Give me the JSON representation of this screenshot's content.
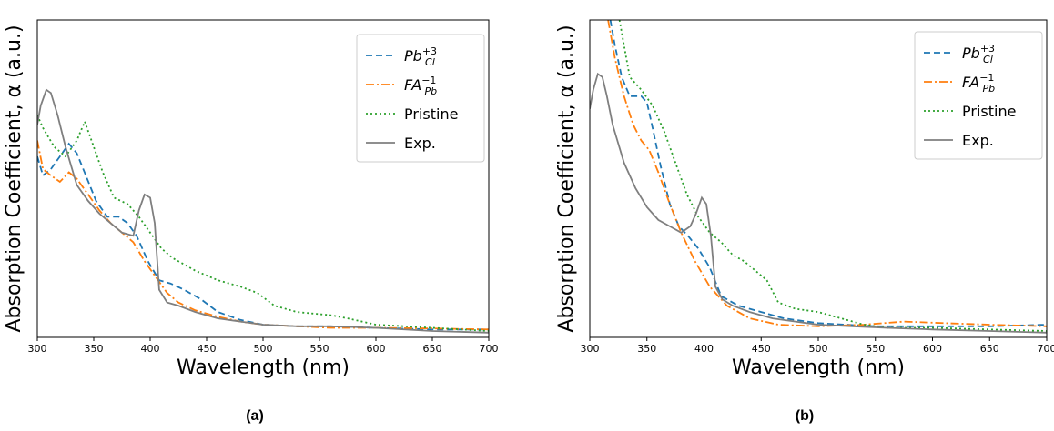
{
  "chart_data": [
    {
      "type": "line",
      "panel_label": "(a)",
      "xlabel": "Wavelength (nm)",
      "ylabel": "Absorption Coefficient, α (a.u.)",
      "xlim": [
        300,
        700
      ],
      "ylim": [
        0,
        1
      ],
      "xticks": [
        "300",
        "350",
        "400",
        "450",
        "500",
        "550",
        "600",
        "650",
        "700"
      ],
      "yticks_shown": false,
      "legend_position": "top-right",
      "series": [
        {
          "name": "Pb",
          "name_sub": "Cl",
          "name_sup": "+3",
          "color": "#1f77b4",
          "style": "dashed",
          "x": [
            300,
            305,
            312,
            320,
            328,
            335,
            343,
            352,
            362,
            372,
            380,
            388,
            398,
            408,
            418,
            430,
            445,
            460,
            480,
            500,
            530,
            560,
            600,
            650,
            700
          ],
          "y": [
            0.57,
            0.51,
            0.53,
            0.57,
            0.61,
            0.58,
            0.51,
            0.43,
            0.38,
            0.38,
            0.36,
            0.32,
            0.24,
            0.18,
            0.17,
            0.15,
            0.12,
            0.08,
            0.055,
            0.04,
            0.035,
            0.035,
            0.03,
            0.025,
            0.025
          ]
        },
        {
          "name": "FA",
          "name_sub": "Pb",
          "name_sup": "−1",
          "color": "#ff7f0e",
          "style": "dashdot",
          "x": [
            300,
            305,
            312,
            320,
            328,
            335,
            345,
            355,
            365,
            375,
            385,
            395,
            405,
            415,
            425,
            440,
            460,
            480,
            500,
            530,
            560,
            600,
            650,
            700
          ],
          "y": [
            0.62,
            0.53,
            0.51,
            0.49,
            0.52,
            0.5,
            0.45,
            0.4,
            0.36,
            0.33,
            0.3,
            0.24,
            0.19,
            0.14,
            0.11,
            0.085,
            0.065,
            0.05,
            0.04,
            0.035,
            0.03,
            0.03,
            0.028,
            0.025
          ]
        },
        {
          "name": "Pristine",
          "color": "#2ca02c",
          "style": "dotted",
          "x": [
            300,
            305,
            315,
            325,
            335,
            342,
            350,
            358,
            368,
            380,
            390,
            400,
            410,
            420,
            440,
            460,
            480,
            495,
            510,
            530,
            560,
            575,
            600,
            650,
            700
          ],
          "y": [
            0.7,
            0.66,
            0.6,
            0.57,
            0.62,
            0.68,
            0.6,
            0.52,
            0.44,
            0.42,
            0.38,
            0.33,
            0.28,
            0.25,
            0.21,
            0.18,
            0.16,
            0.14,
            0.1,
            0.08,
            0.07,
            0.06,
            0.04,
            0.03,
            0.02
          ]
        },
        {
          "name": "Exp.",
          "color": "#7f7f7f",
          "style": "solid",
          "x": [
            300,
            303,
            308,
            312,
            318,
            325,
            335,
            345,
            355,
            365,
            375,
            385,
            390,
            395,
            400,
            404,
            408,
            415,
            425,
            440,
            460,
            480,
            500,
            530,
            560,
            600,
            650,
            700
          ],
          "y": [
            0.67,
            0.73,
            0.78,
            0.77,
            0.7,
            0.6,
            0.48,
            0.43,
            0.39,
            0.36,
            0.33,
            0.32,
            0.4,
            0.45,
            0.44,
            0.36,
            0.15,
            0.11,
            0.1,
            0.08,
            0.06,
            0.05,
            0.04,
            0.035,
            0.035,
            0.03,
            0.02,
            0.015
          ]
        }
      ]
    },
    {
      "type": "line",
      "panel_label": "(b)",
      "xlabel": "Wavelength (nm)",
      "ylabel": "Absorption Coefficient, α (a.u.)",
      "xlim": [
        300,
        700
      ],
      "ylim": [
        0,
        1
      ],
      "xticks": [
        "300",
        "350",
        "400",
        "450",
        "500",
        "550",
        "600",
        "650",
        "700"
      ],
      "yticks_shown": false,
      "legend_position": "top-right",
      "series": [
        {
          "name": "Pb",
          "name_sub": "Cl",
          "name_sup": "+3",
          "color": "#1f77b4",
          "style": "dashed",
          "x": [
            318,
            322,
            328,
            335,
            345,
            350,
            355,
            362,
            370,
            378,
            386,
            395,
            405,
            415,
            430,
            450,
            470,
            500,
            550,
            600,
            650,
            700
          ],
          "y": [
            1.0,
            0.92,
            0.82,
            0.76,
            0.76,
            0.74,
            0.66,
            0.54,
            0.42,
            0.35,
            0.32,
            0.28,
            0.22,
            0.13,
            0.1,
            0.08,
            0.06,
            0.045,
            0.035,
            0.035,
            0.035,
            0.04
          ]
        },
        {
          "name": "FA",
          "name_sub": "Pb",
          "name_sup": "−1",
          "color": "#ff7f0e",
          "style": "dashdot",
          "x": [
            316,
            322,
            330,
            338,
            345,
            352,
            360,
            370,
            380,
            392,
            405,
            420,
            440,
            465,
            500,
            540,
            575,
            610,
            650,
            700
          ],
          "y": [
            1.0,
            0.88,
            0.76,
            0.67,
            0.62,
            0.59,
            0.52,
            0.42,
            0.33,
            0.24,
            0.16,
            0.1,
            0.06,
            0.04,
            0.035,
            0.04,
            0.05,
            0.045,
            0.04,
            0.035
          ]
        },
        {
          "name": "Pristine",
          "color": "#2ca02c",
          "style": "dotted",
          "x": [
            326,
            330,
            335,
            345,
            355,
            365,
            375,
            385,
            395,
            405,
            415,
            425,
            435,
            445,
            455,
            465,
            480,
            500,
            520,
            540,
            560,
            600,
            650,
            700
          ],
          "y": [
            1.0,
            0.92,
            0.82,
            0.78,
            0.73,
            0.65,
            0.55,
            0.45,
            0.38,
            0.33,
            0.3,
            0.26,
            0.24,
            0.21,
            0.18,
            0.11,
            0.09,
            0.08,
            0.06,
            0.04,
            0.03,
            0.03,
            0.025,
            0.02
          ]
        },
        {
          "name": "Exp.",
          "color": "#7f7f7f",
          "style": "solid",
          "x": [
            300,
            303,
            307,
            311,
            315,
            320,
            330,
            340,
            350,
            360,
            370,
            380,
            388,
            393,
            398,
            402,
            406,
            410,
            416,
            425,
            440,
            460,
            480,
            500,
            530,
            560,
            600,
            650,
            700
          ],
          "y": [
            0.72,
            0.78,
            0.83,
            0.82,
            0.76,
            0.67,
            0.55,
            0.47,
            0.41,
            0.37,
            0.35,
            0.33,
            0.35,
            0.39,
            0.44,
            0.42,
            0.32,
            0.16,
            0.12,
            0.1,
            0.08,
            0.06,
            0.05,
            0.04,
            0.035,
            0.03,
            0.025,
            0.02,
            0.015
          ]
        }
      ]
    }
  ]
}
